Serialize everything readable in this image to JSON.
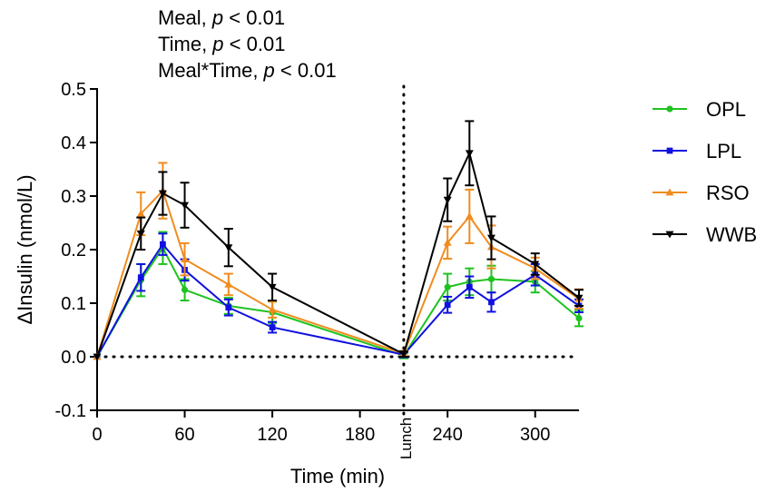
{
  "chart_data": {
    "type": "line",
    "title": "",
    "annotations": [
      {
        "prefix": "Meal, ",
        "p": "p",
        "suffix": " < 0.01"
      },
      {
        "prefix": "Time, ",
        "p": "p",
        "suffix": " < 0.01"
      },
      {
        "prefix": "Meal*Time, ",
        "p": "p",
        "suffix": " < 0.01"
      }
    ],
    "xlabel": "Time (min)",
    "ylabel": "ΔInsulin (nmol/L)",
    "xlim": [
      0,
      330
    ],
    "ylim": [
      -0.1,
      0.5
    ],
    "xticks": [
      0,
      60,
      120,
      180,
      240,
      300
    ],
    "xtick_labels": [
      "0",
      "60",
      "120",
      "180",
      "240",
      "300"
    ],
    "yticks": [
      -0.1,
      0.0,
      0.1,
      0.2,
      0.3,
      0.4,
      0.5
    ],
    "ytick_labels": [
      "-0.1",
      "0.0",
      "0.1",
      "0.2",
      "0.3",
      "0.4",
      "0.5"
    ],
    "lunch_x": 210,
    "lunch_label": "Lunch",
    "baseline_y": 0,
    "legend_position": "right",
    "x": [
      0,
      30,
      45,
      60,
      90,
      120,
      210,
      240,
      255,
      270,
      300,
      330
    ],
    "series": [
      {
        "name": "OPL",
        "color": "#1ec31e",
        "marker": "circle",
        "values": [
          0.0,
          0.143,
          0.203,
          0.125,
          0.095,
          0.083,
          0.002,
          0.13,
          0.14,
          0.145,
          0.14,
          0.072
        ],
        "errors": [
          0.0,
          0.03,
          0.03,
          0.02,
          0.015,
          0.02,
          0.005,
          0.025,
          0.025,
          0.025,
          0.02,
          0.015
        ]
      },
      {
        "name": "LPL",
        "color": "#1010e0",
        "marker": "square",
        "values": [
          0.0,
          0.148,
          0.21,
          0.162,
          0.092,
          0.055,
          0.004,
          0.097,
          0.13,
          0.102,
          0.153,
          0.095
        ],
        "errors": [
          0.0,
          0.025,
          0.02,
          0.02,
          0.015,
          0.01,
          0.005,
          0.015,
          0.02,
          0.018,
          0.02,
          0.012
        ]
      },
      {
        "name": "RSO",
        "color": "#f08c1e",
        "marker": "triangle-up",
        "values": [
          0.0,
          0.267,
          0.31,
          0.182,
          0.135,
          0.088,
          0.006,
          0.213,
          0.262,
          0.205,
          0.165,
          0.108
        ],
        "errors": [
          0.0,
          0.04,
          0.052,
          0.03,
          0.02,
          0.015,
          0.005,
          0.03,
          0.05,
          0.04,
          0.02,
          0.018
        ]
      },
      {
        "name": "WWB",
        "color": "#000000",
        "marker": "triangle-down",
        "values": [
          0.0,
          0.23,
          0.305,
          0.283,
          0.204,
          0.13,
          0.005,
          0.293,
          0.38,
          0.222,
          0.173,
          0.11
        ],
        "errors": [
          0.0,
          0.03,
          0.04,
          0.042,
          0.035,
          0.025,
          0.005,
          0.04,
          0.06,
          0.04,
          0.02,
          0.015
        ]
      }
    ]
  }
}
